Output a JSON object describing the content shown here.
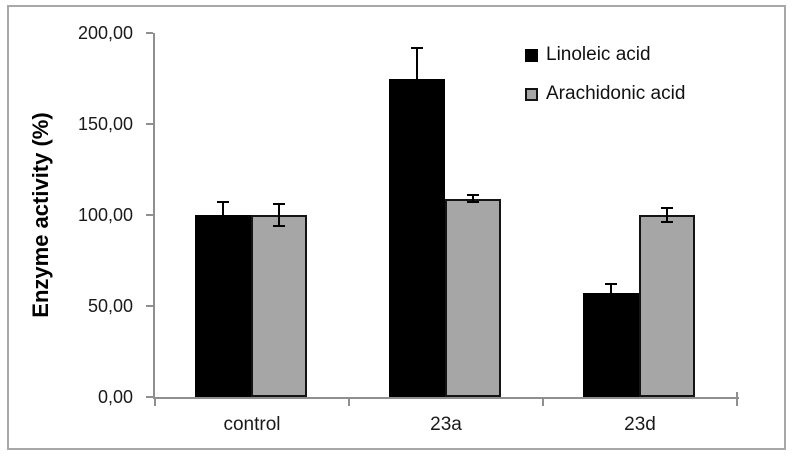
{
  "chart_data": {
    "type": "bar",
    "title": "",
    "xlabel": "",
    "ylabel": "Enzyme activity (%)",
    "categories": [
      "control",
      "23a",
      "23d"
    ],
    "series": [
      {
        "name": "Linoleic acid",
        "color": "#000000",
        "border_color": "#000000",
        "values": [
          100,
          175,
          57
        ],
        "errors": [
          7,
          17,
          5
        ]
      },
      {
        "name": "Arachidonic acid",
        "color": "#a6a6a6",
        "border_color": "#141414",
        "values": [
          100,
          109,
          100
        ],
        "errors": [
          6,
          2,
          4
        ]
      }
    ],
    "ylim": [
      0,
      200
    ],
    "ytick_step": 50,
    "ytick_labels": [
      "0,00",
      "50,00",
      "100,00",
      "150,00",
      "200,00"
    ],
    "grid": false,
    "legend_position": "top-right",
    "error_bars": true,
    "colors": {
      "axis": "#8f8f8f",
      "frame_border": "#a8a8a8",
      "tick_text": "#1a1a1a",
      "error": "#000000",
      "background": "#ffffff"
    }
  }
}
